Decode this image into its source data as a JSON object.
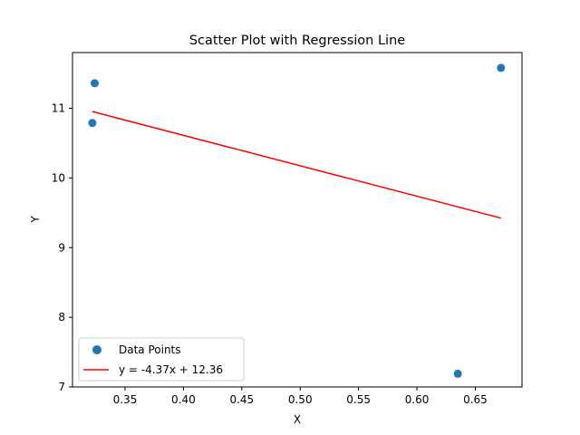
{
  "chart_data": {
    "type": "scatter",
    "title": "Scatter Plot with Regression Line",
    "xlabel": "X",
    "ylabel": "Y",
    "xlim": [
      0.305,
      0.69
    ],
    "ylim": [
      7.0,
      11.8
    ],
    "xticks": [
      0.35,
      0.4,
      0.45,
      0.5,
      0.55,
      0.6,
      0.65
    ],
    "xtick_labels": [
      "0.35",
      "0.40",
      "0.45",
      "0.50",
      "0.55",
      "0.60",
      "0.65"
    ],
    "yticks": [
      7,
      8,
      9,
      10,
      11
    ],
    "ytick_labels": [
      "7",
      "8",
      "9",
      "10",
      "11"
    ],
    "grid": false,
    "legend_position": "lower-left",
    "series": [
      {
        "name": "Data Points",
        "kind": "scatter",
        "color": "#1f77b4",
        "points": [
          {
            "x": 0.322,
            "y": 10.79
          },
          {
            "x": 0.324,
            "y": 11.36
          },
          {
            "x": 0.635,
            "y": 7.19
          },
          {
            "x": 0.672,
            "y": 11.58
          }
        ]
      },
      {
        "name": "y = -4.37x + 12.36",
        "kind": "line",
        "color": "#ff0000",
        "slope": -4.37,
        "intercept": 12.36,
        "x_range": [
          0.322,
          0.672
        ]
      }
    ]
  }
}
